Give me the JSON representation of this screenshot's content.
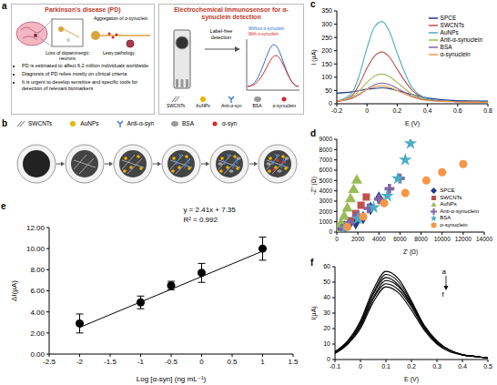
{
  "diagram": {
    "a": {
      "label": "a",
      "left": {
        "title": "Parkinson's disease (PD)",
        "labels": [
          "Loss of dopaminergic neurons",
          "Aggregation of α-synuclein",
          "Lewy pathology"
        ],
        "bullets": [
          "PD is estimated to affect 6.2 million individuals worldwide",
          "Diagnosis of PD relies mostly on clinical criteria",
          "It is urgent to develop sensitive and specific tools for detection of relevant biomarkers"
        ]
      },
      "right": {
        "title": "Electrochemical Immunosensor for α-synuclein detection",
        "note": "Label-free detection",
        "curves": [
          "Without α-synuclein",
          "With α-synuclein"
        ],
        "legend": [
          "SWCNTs",
          "AuNPs",
          "Anti-α-syn",
          "BSA",
          "α-synuclein"
        ]
      }
    },
    "b": {
      "label": "b",
      "legend": [
        "SWCNTs",
        "AuNPs",
        "Anti-α-syn",
        "BSA",
        "α-syn"
      ]
    }
  },
  "chart_data": [
    {
      "panel_label": "c",
      "type": "line",
      "x_label": "E (V)",
      "y_label": "I (µA)",
      "x": [
        -0.2,
        -0.1,
        -0.05,
        0,
        0.05,
        0.1,
        0.15,
        0.2,
        0.3,
        0.4,
        0.5,
        0.6,
        0.8
      ],
      "series": [
        {
          "name": "SPCE",
          "color": "#1f3c88",
          "values": [
            40,
            45,
            50,
            55,
            58,
            60,
            57,
            50,
            35,
            22,
            15,
            12,
            10
          ]
        },
        {
          "name": "SWCNTs",
          "color": "#c0504d",
          "values": [
            8,
            30,
            75,
            135,
            180,
            195,
            175,
            130,
            50,
            18,
            10,
            8,
            5
          ]
        },
        {
          "name": "AuNPs",
          "color": "#4bacc6",
          "values": [
            10,
            40,
            110,
            210,
            290,
            310,
            270,
            190,
            60,
            20,
            10,
            8,
            5
          ]
        },
        {
          "name": "Anti-α-synuclein",
          "color": "#9bbb59",
          "values": [
            8,
            25,
            50,
            80,
            105,
            112,
            102,
            80,
            35,
            15,
            10,
            8,
            5
          ]
        },
        {
          "name": "BSA",
          "color": "#8064a2",
          "values": [
            10,
            20,
            35,
            55,
            72,
            78,
            72,
            58,
            28,
            14,
            10,
            8,
            5
          ]
        },
        {
          "name": "α-synuclein",
          "color": "#f79646",
          "values": [
            10,
            22,
            38,
            55,
            65,
            68,
            62,
            50,
            25,
            12,
            9,
            7,
            5
          ]
        }
      ],
      "xlim": [
        -0.2,
        0.8
      ],
      "xticks": [
        -0.2,
        0,
        0.2,
        0.4,
        0.6,
        0.8
      ],
      "ylim": [
        0,
        350
      ],
      "yticks": [
        0,
        50,
        100,
        150,
        200,
        250,
        300,
        350
      ],
      "legend": "top-right"
    },
    {
      "panel_label": "d",
      "type": "scatter",
      "x_label": "Z' (Ω)",
      "y_label": "-Z'' (Ω)",
      "series": [
        {
          "name": "SPCE",
          "color": "#1f3c88",
          "marker": "diamond",
          "x": [
            300,
            700,
            1200,
            1800,
            2500,
            3200,
            4000
          ],
          "values": [
            200,
            500,
            800,
            900,
            1400,
            2300,
            3300
          ]
        },
        {
          "name": "SWCNTs",
          "color": "#c0504d",
          "marker": "square",
          "x": [
            200,
            500,
            900,
            1300,
            1800,
            2300,
            2800
          ],
          "values": [
            150,
            400,
            700,
            1100,
            1800,
            2600,
            3400
          ]
        },
        {
          "name": "AuNPs",
          "color": "#9bbb59",
          "marker": "triangle",
          "x": [
            200,
            400,
            700,
            1000,
            1300,
            1600,
            1900
          ],
          "values": [
            300,
            800,
            1500,
            2300,
            3200,
            4100,
            5000
          ]
        },
        {
          "name": "Anti-α-synuclein",
          "color": "#8064a2",
          "marker": "cross",
          "x": [
            500,
            1200,
            2000,
            3000,
            4000,
            5000,
            6000
          ],
          "values": [
            300,
            900,
            1600,
            2300,
            3200,
            4200,
            5200
          ]
        },
        {
          "name": "BSA",
          "color": "#4bacc6",
          "marker": "star",
          "x": [
            800,
            2000,
            3500,
            4800,
            5800,
            6500,
            7000
          ],
          "values": [
            400,
            1300,
            2400,
            3500,
            5200,
            7000,
            8600
          ]
        },
        {
          "name": "α-synuclein",
          "color": "#f79646",
          "marker": "circle",
          "x": [
            1000,
            2500,
            4500,
            6500,
            8500,
            10000,
            12000
          ],
          "values": [
            500,
            1500,
            2800,
            3800,
            5000,
            5800,
            6600
          ]
        }
      ],
      "xlim": [
        0,
        14000
      ],
      "xticks": [
        0,
        2000,
        4000,
        6000,
        8000,
        10000,
        12000,
        14000
      ],
      "ylim": [
        0,
        9000
      ],
      "yticks": [
        0,
        1000,
        2000,
        3000,
        4000,
        5000,
        6000,
        7000,
        8000,
        9000
      ],
      "legend": "bottom-right"
    },
    {
      "panel_label": "e",
      "type": "scatter",
      "x_label": "Log [α-syn] (ng mL⁻¹)",
      "y_label": "ΔI(µA)",
      "x": [
        -2,
        -1,
        -0.5,
        0,
        1
      ],
      "values": [
        2.9,
        4.9,
        6.5,
        7.7,
        10.0
      ],
      "errors": [
        0.9,
        0.6,
        0.4,
        0.9,
        1.1
      ],
      "color": "#000000",
      "marker": "circle",
      "trendline": {
        "x": [
          -2,
          1
        ],
        "values": [
          2.53,
          9.76
        ]
      },
      "annotations": [
        "y = 2.41x + 7.35",
        "R² = 0.992"
      ],
      "xlim": [
        -2.5,
        1.5
      ],
      "xticks": [
        -2.5,
        -2,
        -1.5,
        -1,
        -0.5,
        0,
        0.5,
        1,
        1.5
      ],
      "ylim": [
        0,
        12
      ],
      "yticks": [
        {
          "value": 0,
          "label": "0.00"
        },
        {
          "value": 2,
          "label": "2.00"
        },
        {
          "value": 4,
          "label": "4.00"
        },
        {
          "value": 6,
          "label": "6.00"
        },
        {
          "value": 8,
          "label": "8.00"
        },
        {
          "value": 10,
          "label": "10.00"
        },
        {
          "value": 12,
          "label": "12.00"
        }
      ]
    },
    {
      "panel_label": "f",
      "type": "line",
      "x_label": "E (V)",
      "y_label": "I(µA)",
      "x": [
        -0.1,
        -0.05,
        0,
        0.05,
        0.1,
        0.15,
        0.2,
        0.25,
        0.3,
        0.35,
        0.4,
        0.45,
        0.5
      ],
      "series": [
        {
          "color": "#000000",
          "values": [
            5,
            12,
            25,
            45,
            57,
            52,
            38,
            22,
            12,
            6,
            3,
            2,
            1
          ]
        },
        {
          "color": "#000000",
          "values": [
            5,
            12,
            24,
            43,
            55,
            50,
            37,
            22,
            12,
            6,
            3,
            2,
            1
          ]
        },
        {
          "color": "#000000",
          "values": [
            5,
            11,
            23,
            42,
            53,
            48,
            36,
            21,
            11,
            6,
            3,
            2,
            1
          ]
        },
        {
          "color": "#000000",
          "values": [
            5,
            11,
            22,
            40,
            51,
            47,
            35,
            21,
            11,
            6,
            3,
            2,
            1
          ]
        },
        {
          "color": "#000000",
          "values": [
            4,
            10,
            21,
            39,
            49,
            45,
            34,
            20,
            11,
            6,
            3,
            2,
            1
          ]
        },
        {
          "color": "#000000",
          "values": [
            4,
            10,
            20,
            37,
            47,
            43,
            32,
            19,
            10,
            5,
            3,
            2,
            1
          ]
        }
      ],
      "annotations": [
        "a",
        "f"
      ],
      "xlim": [
        -0.1,
        0.5
      ],
      "xticks": [
        -0.1,
        0,
        0.1,
        0.2,
        0.3,
        0.4,
        0.5
      ],
      "ylim": [
        0,
        60
      ],
      "yticks": [
        0,
        10,
        20,
        30,
        40,
        50,
        60
      ]
    }
  ]
}
